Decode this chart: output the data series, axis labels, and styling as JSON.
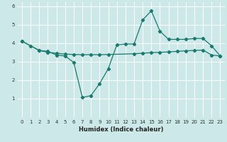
{
  "xlabel": "Humidex (Indice chaleur)",
  "background_color": "#cce8e8",
  "grid_color": "#ffffff",
  "line_color": "#1a7a6e",
  "xlim": [
    -0.5,
    23.5
  ],
  "ylim": [
    0,
    6.2
  ],
  "xticks": [
    0,
    1,
    2,
    3,
    4,
    5,
    6,
    7,
    8,
    9,
    10,
    11,
    12,
    13,
    14,
    15,
    16,
    17,
    18,
    19,
    20,
    21,
    22,
    23
  ],
  "yticks": [
    1,
    2,
    3,
    4,
    5,
    6
  ],
  "line1_x": [
    0,
    1,
    2,
    3,
    4,
    5,
    6,
    7,
    8,
    9,
    10,
    11,
    12,
    13,
    14,
    15,
    16,
    17,
    18,
    19,
    20,
    21,
    22,
    23
  ],
  "line1_y": [
    4.1,
    3.85,
    3.6,
    3.55,
    3.35,
    3.3,
    2.95,
    1.05,
    1.15,
    1.8,
    2.6,
    3.9,
    3.95,
    3.95,
    5.25,
    5.75,
    4.65,
    4.2,
    4.2,
    4.2,
    4.25,
    4.25,
    3.85,
    3.3
  ],
  "line2_x": [
    0,
    2,
    3,
    4,
    5,
    6,
    7,
    8,
    9,
    10,
    13,
    14,
    15,
    16,
    17,
    18,
    19,
    20,
    21,
    22,
    23
  ],
  "line2_y": [
    4.1,
    3.6,
    3.5,
    3.45,
    3.4,
    3.38,
    3.37,
    3.37,
    3.37,
    3.38,
    3.42,
    3.45,
    3.48,
    3.5,
    3.52,
    3.55,
    3.58,
    3.6,
    3.62,
    3.35,
    3.3
  ],
  "xlabel_fontsize": 6.0,
  "tick_fontsize": 5.0,
  "linewidth": 0.9,
  "markersize": 2.2
}
